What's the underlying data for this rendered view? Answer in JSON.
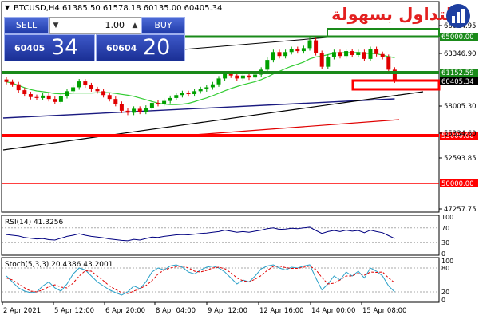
{
  "chart_header": {
    "symbol_info": "BTCUSD,H4  61385.50 61578.18 60135.00 60405.34"
  },
  "trade_panel": {
    "sell_label": "SELL",
    "buy_label": "BUY",
    "lot_value": "1.00",
    "sell_price_small": "60405",
    "sell_price_big": "34",
    "buy_price_small": "60604",
    "buy_price_big": "20"
  },
  "logo": {
    "text": "التداول بسهولة",
    "icon": "bar-chart-logo-icon"
  },
  "price_scale": {
    "labels": [
      "66014.95",
      "63346.90",
      "58005.30",
      "55334.60",
      "52593.85",
      "47257.75"
    ]
  },
  "level_labels": [
    {
      "text": "65000.00",
      "color": "#1a8a1a"
    },
    {
      "text": "61152.59",
      "color": "#1a8a1a"
    },
    {
      "text": "60405.34",
      "color": "#000000"
    },
    {
      "text": "55000.00",
      "color": "#ff0000"
    },
    {
      "text": "50000.00",
      "color": "#ff0000"
    }
  ],
  "rsi": {
    "label": "RSI(14) 41.3256",
    "levels": [
      "100",
      "70",
      "30",
      "0"
    ]
  },
  "stoch": {
    "label": "Stoch(5,3,3) 20.4386 43.2001",
    "levels": [
      "100",
      "80",
      "20",
      "0"
    ]
  },
  "time_axis": {
    "labels": [
      "2 Apr 2021",
      "5 Apr 12:00",
      "6 Apr 20:00",
      "8 Apr 04:00",
      "9 Apr 12:00",
      "12 Apr 16:00",
      "14 Apr 00:00",
      "15 Apr 08:00"
    ]
  },
  "colors": {
    "bull_candle": "#00a000",
    "bear_candle": "#e00000",
    "support_resistance": "#1a8a1a",
    "red_level": "#ff0000",
    "ma_fast": "#33cc33",
    "ma_mid": "#1a1a80",
    "ma_slow": "#e00000",
    "rsi_line": "#000080",
    "stoch_main": "#2aa0c8",
    "stoch_signal": "#e00000"
  },
  "candles": [
    {
      "o": 60500,
      "c": 60250
    },
    {
      "o": 60250,
      "c": 60000
    },
    {
      "o": 60000,
      "c": 59400
    },
    {
      "o": 59400,
      "c": 59000
    },
    {
      "o": 59000,
      "c": 58700
    },
    {
      "o": 58700,
      "c": 58600
    },
    {
      "o": 58600,
      "c": 58850
    },
    {
      "o": 58850,
      "c": 58500
    },
    {
      "o": 58500,
      "c": 58200
    },
    {
      "o": 58200,
      "c": 58800
    },
    {
      "o": 58800,
      "c": 59300
    },
    {
      "o": 59300,
      "c": 59700
    },
    {
      "o": 59700,
      "c": 60300
    },
    {
      "o": 60300,
      "c": 59900
    },
    {
      "o": 59900,
      "c": 59500
    },
    {
      "o": 59500,
      "c": 59300
    },
    {
      "o": 59300,
      "c": 58900
    },
    {
      "o": 58900,
      "c": 58500
    },
    {
      "o": 58500,
      "c": 58000
    },
    {
      "o": 58000,
      "c": 57300
    },
    {
      "o": 57300,
      "c": 57100
    },
    {
      "o": 57100,
      "c": 57500
    },
    {
      "o": 57500,
      "c": 57200
    },
    {
      "o": 57200,
      "c": 57600
    },
    {
      "o": 57600,
      "c": 58100
    },
    {
      "o": 58100,
      "c": 58000
    },
    {
      "o": 58000,
      "c": 58300
    },
    {
      "o": 58300,
      "c": 58600
    },
    {
      "o": 58600,
      "c": 58900
    },
    {
      "o": 58900,
      "c": 59100
    },
    {
      "o": 59100,
      "c": 59000
    },
    {
      "o": 59000,
      "c": 59300
    },
    {
      "o": 59300,
      "c": 59500
    },
    {
      "o": 59500,
      "c": 59700
    },
    {
      "o": 59700,
      "c": 60000
    },
    {
      "o": 60000,
      "c": 60600
    },
    {
      "o": 60600,
      "c": 61100
    },
    {
      "o": 61100,
      "c": 60900
    },
    {
      "o": 60900,
      "c": 60600
    },
    {
      "o": 60600,
      "c": 60900
    },
    {
      "o": 60900,
      "c": 60700
    },
    {
      "o": 60700,
      "c": 61000
    },
    {
      "o": 61000,
      "c": 61500
    },
    {
      "o": 61500,
      "c": 62500
    },
    {
      "o": 62500,
      "c": 63300
    },
    {
      "o": 63300,
      "c": 62900
    },
    {
      "o": 62900,
      "c": 63300
    },
    {
      "o": 63300,
      "c": 63600
    },
    {
      "o": 63600,
      "c": 63400
    },
    {
      "o": 63400,
      "c": 63700
    },
    {
      "o": 63700,
      "c": 64500
    },
    {
      "o": 64500,
      "c": 63200
    },
    {
      "o": 63200,
      "c": 61800
    },
    {
      "o": 61800,
      "c": 62800
    },
    {
      "o": 62800,
      "c": 63300
    },
    {
      "o": 63300,
      "c": 62900
    },
    {
      "o": 62900,
      "c": 63400
    },
    {
      "o": 63400,
      "c": 63000
    },
    {
      "o": 63000,
      "c": 63300
    },
    {
      "o": 63300,
      "c": 62600
    },
    {
      "o": 62600,
      "c": 63600
    },
    {
      "o": 63600,
      "c": 63100
    },
    {
      "o": 63100,
      "c": 62800
    },
    {
      "o": 62800,
      "c": 61500
    },
    {
      "o": 61500,
      "c": 60400
    }
  ],
  "rsi_values": [
    52,
    50,
    48,
    44,
    42,
    40,
    41,
    38,
    37,
    42,
    47,
    50,
    54,
    50,
    47,
    45,
    43,
    40,
    38,
    36,
    35,
    39,
    37,
    41,
    45,
    44,
    47,
    49,
    51,
    52,
    51,
    53,
    55,
    56,
    58,
    60,
    64,
    61,
    58,
    60,
    58,
    61,
    64,
    68,
    70,
    66,
    67,
    69,
    68,
    70,
    72,
    63,
    55,
    60,
    63,
    60,
    64,
    61,
    63,
    57,
    64,
    60,
    57,
    49,
    41
  ],
  "stoch_main": [
    60,
    45,
    30,
    22,
    18,
    20,
    35,
    45,
    30,
    22,
    40,
    65,
    80,
    75,
    60,
    45,
    35,
    25,
    18,
    12,
    20,
    35,
    28,
    45,
    70,
    80,
    75,
    85,
    88,
    82,
    70,
    65,
    75,
    82,
    85,
    80,
    70,
    55,
    40,
    50,
    45,
    60,
    78,
    85,
    88,
    80,
    75,
    82,
    80,
    85,
    88,
    55,
    25,
    40,
    60,
    50,
    70,
    60,
    72,
    55,
    80,
    72,
    60,
    35,
    20
  ],
  "stoch_signal": [
    55,
    50,
    40,
    30,
    22,
    20,
    25,
    33,
    38,
    32,
    30,
    42,
    60,
    73,
    72,
    60,
    48,
    35,
    26,
    18,
    16,
    22,
    28,
    36,
    48,
    65,
    75,
    80,
    83,
    85,
    80,
    72,
    70,
    74,
    80,
    82,
    78,
    68,
    55,
    48,
    45,
    52,
    61,
    74,
    84,
    85,
    81,
    79,
    79,
    82,
    85,
    76,
    56,
    40,
    42,
    50,
    60,
    60,
    67,
    62,
    70,
    69,
    70,
    55,
    43
  ]
}
